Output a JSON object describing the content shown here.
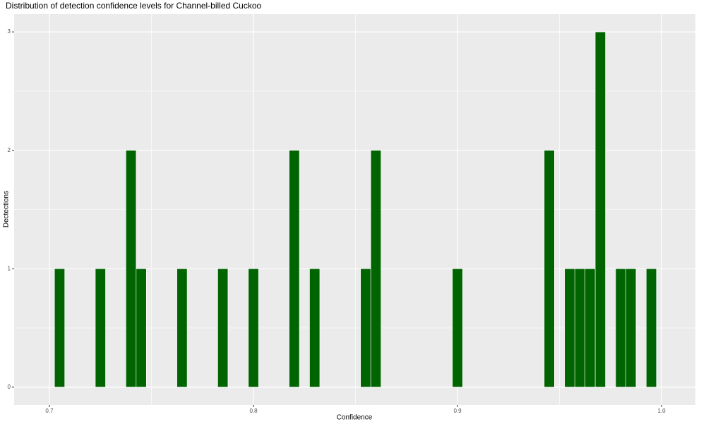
{
  "chart_data": {
    "type": "histogram",
    "title": "Distribution of detection confidence levels for Channel-billed Cuckoo",
    "x_label": "Confidence",
    "y_label": "Dectections",
    "bins": [
      0.7025,
      0.7075,
      0.7125,
      0.7175,
      0.7225,
      0.7275,
      0.7325,
      0.7375,
      0.7425,
      0.7475,
      0.7525,
      0.7575,
      0.7625,
      0.7675,
      0.7725,
      0.7775,
      0.7825,
      0.7875,
      0.7925,
      0.7975,
      0.8025,
      0.8075,
      0.8125,
      0.8175,
      0.8225,
      0.8275,
      0.8325,
      0.8375,
      0.8425,
      0.8475,
      0.8525,
      0.8575,
      0.8625,
      0.8675,
      0.8725,
      0.8775,
      0.8825,
      0.8875,
      0.8925,
      0.8975,
      0.9025,
      0.9075,
      0.9125,
      0.9175,
      0.9225,
      0.9275,
      0.9325,
      0.9375,
      0.9425,
      0.9475,
      0.9525,
      0.9575,
      0.9625,
      0.9675,
      0.9725,
      0.9775,
      0.9825,
      0.9875,
      0.9925,
      0.9975
    ],
    "counts": [
      1,
      0,
      0,
      0,
      1,
      0,
      0,
      2,
      1,
      0,
      0,
      0,
      1,
      0,
      0,
      0,
      1,
      0,
      0,
      1,
      0,
      0,
      0,
      2,
      0,
      1,
      0,
      0,
      0,
      0,
      1,
      2,
      0,
      0,
      0,
      0,
      0,
      0,
      0,
      1,
      0,
      0,
      0,
      0,
      0,
      0,
      0,
      0,
      2,
      0,
      1,
      1,
      1,
      3,
      0,
      1,
      1,
      0,
      1
    ],
    "color": "#006400",
    "xlim": [
      0.6827,
      1.0166
    ],
    "xticks": [
      0.7,
      0.8,
      0.9,
      {
        "value": 1,
        "label": "1.0"
      }
    ],
    "ylim": [
      -0.15,
      3.15
    ],
    "yticks": [
      0,
      1,
      2,
      3
    ],
    "grid": true
  }
}
